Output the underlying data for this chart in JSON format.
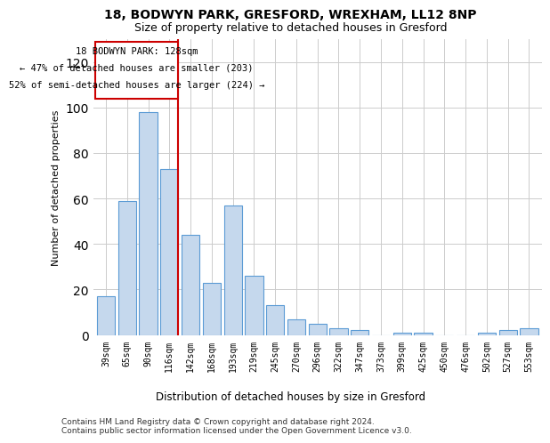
{
  "title1": "18, BODWYN PARK, GRESFORD, WREXHAM, LL12 8NP",
  "title2": "Size of property relative to detached houses in Gresford",
  "xlabel": "Distribution of detached houses by size in Gresford",
  "ylabel": "Number of detached properties",
  "categories": [
    "39sqm",
    "65sqm",
    "90sqm",
    "116sqm",
    "142sqm",
    "168sqm",
    "193sqm",
    "219sqm",
    "245sqm",
    "270sqm",
    "296sqm",
    "322sqm",
    "347sqm",
    "373sqm",
    "399sqm",
    "425sqm",
    "450sqm",
    "476sqm",
    "502sqm",
    "527sqm",
    "553sqm"
  ],
  "values": [
    17,
    59,
    98,
    73,
    44,
    23,
    57,
    26,
    13,
    7,
    5,
    3,
    2,
    0,
    1,
    1,
    0,
    0,
    1,
    2,
    3
  ],
  "bar_color": "#c5d8ed",
  "bar_edge_color": "#5b9bd5",
  "highlight_index": 3,
  "highlight_line_color": "#cc0000",
  "annotation_box_color": "#ffffff",
  "annotation_box_edge": "#cc0000",
  "annotation_text1": "18 BODWYN PARK: 128sqm",
  "annotation_text2": "← 47% of detached houses are smaller (203)",
  "annotation_text3": "52% of semi-detached houses are larger (224) →",
  "ylim": [
    0,
    130
  ],
  "yticks": [
    0,
    20,
    40,
    60,
    80,
    100,
    120
  ],
  "footer1": "Contains HM Land Registry data © Crown copyright and database right 2024.",
  "footer2": "Contains public sector information licensed under the Open Government Licence v3.0.",
  "bg_color": "#ffffff",
  "grid_color": "#cccccc"
}
